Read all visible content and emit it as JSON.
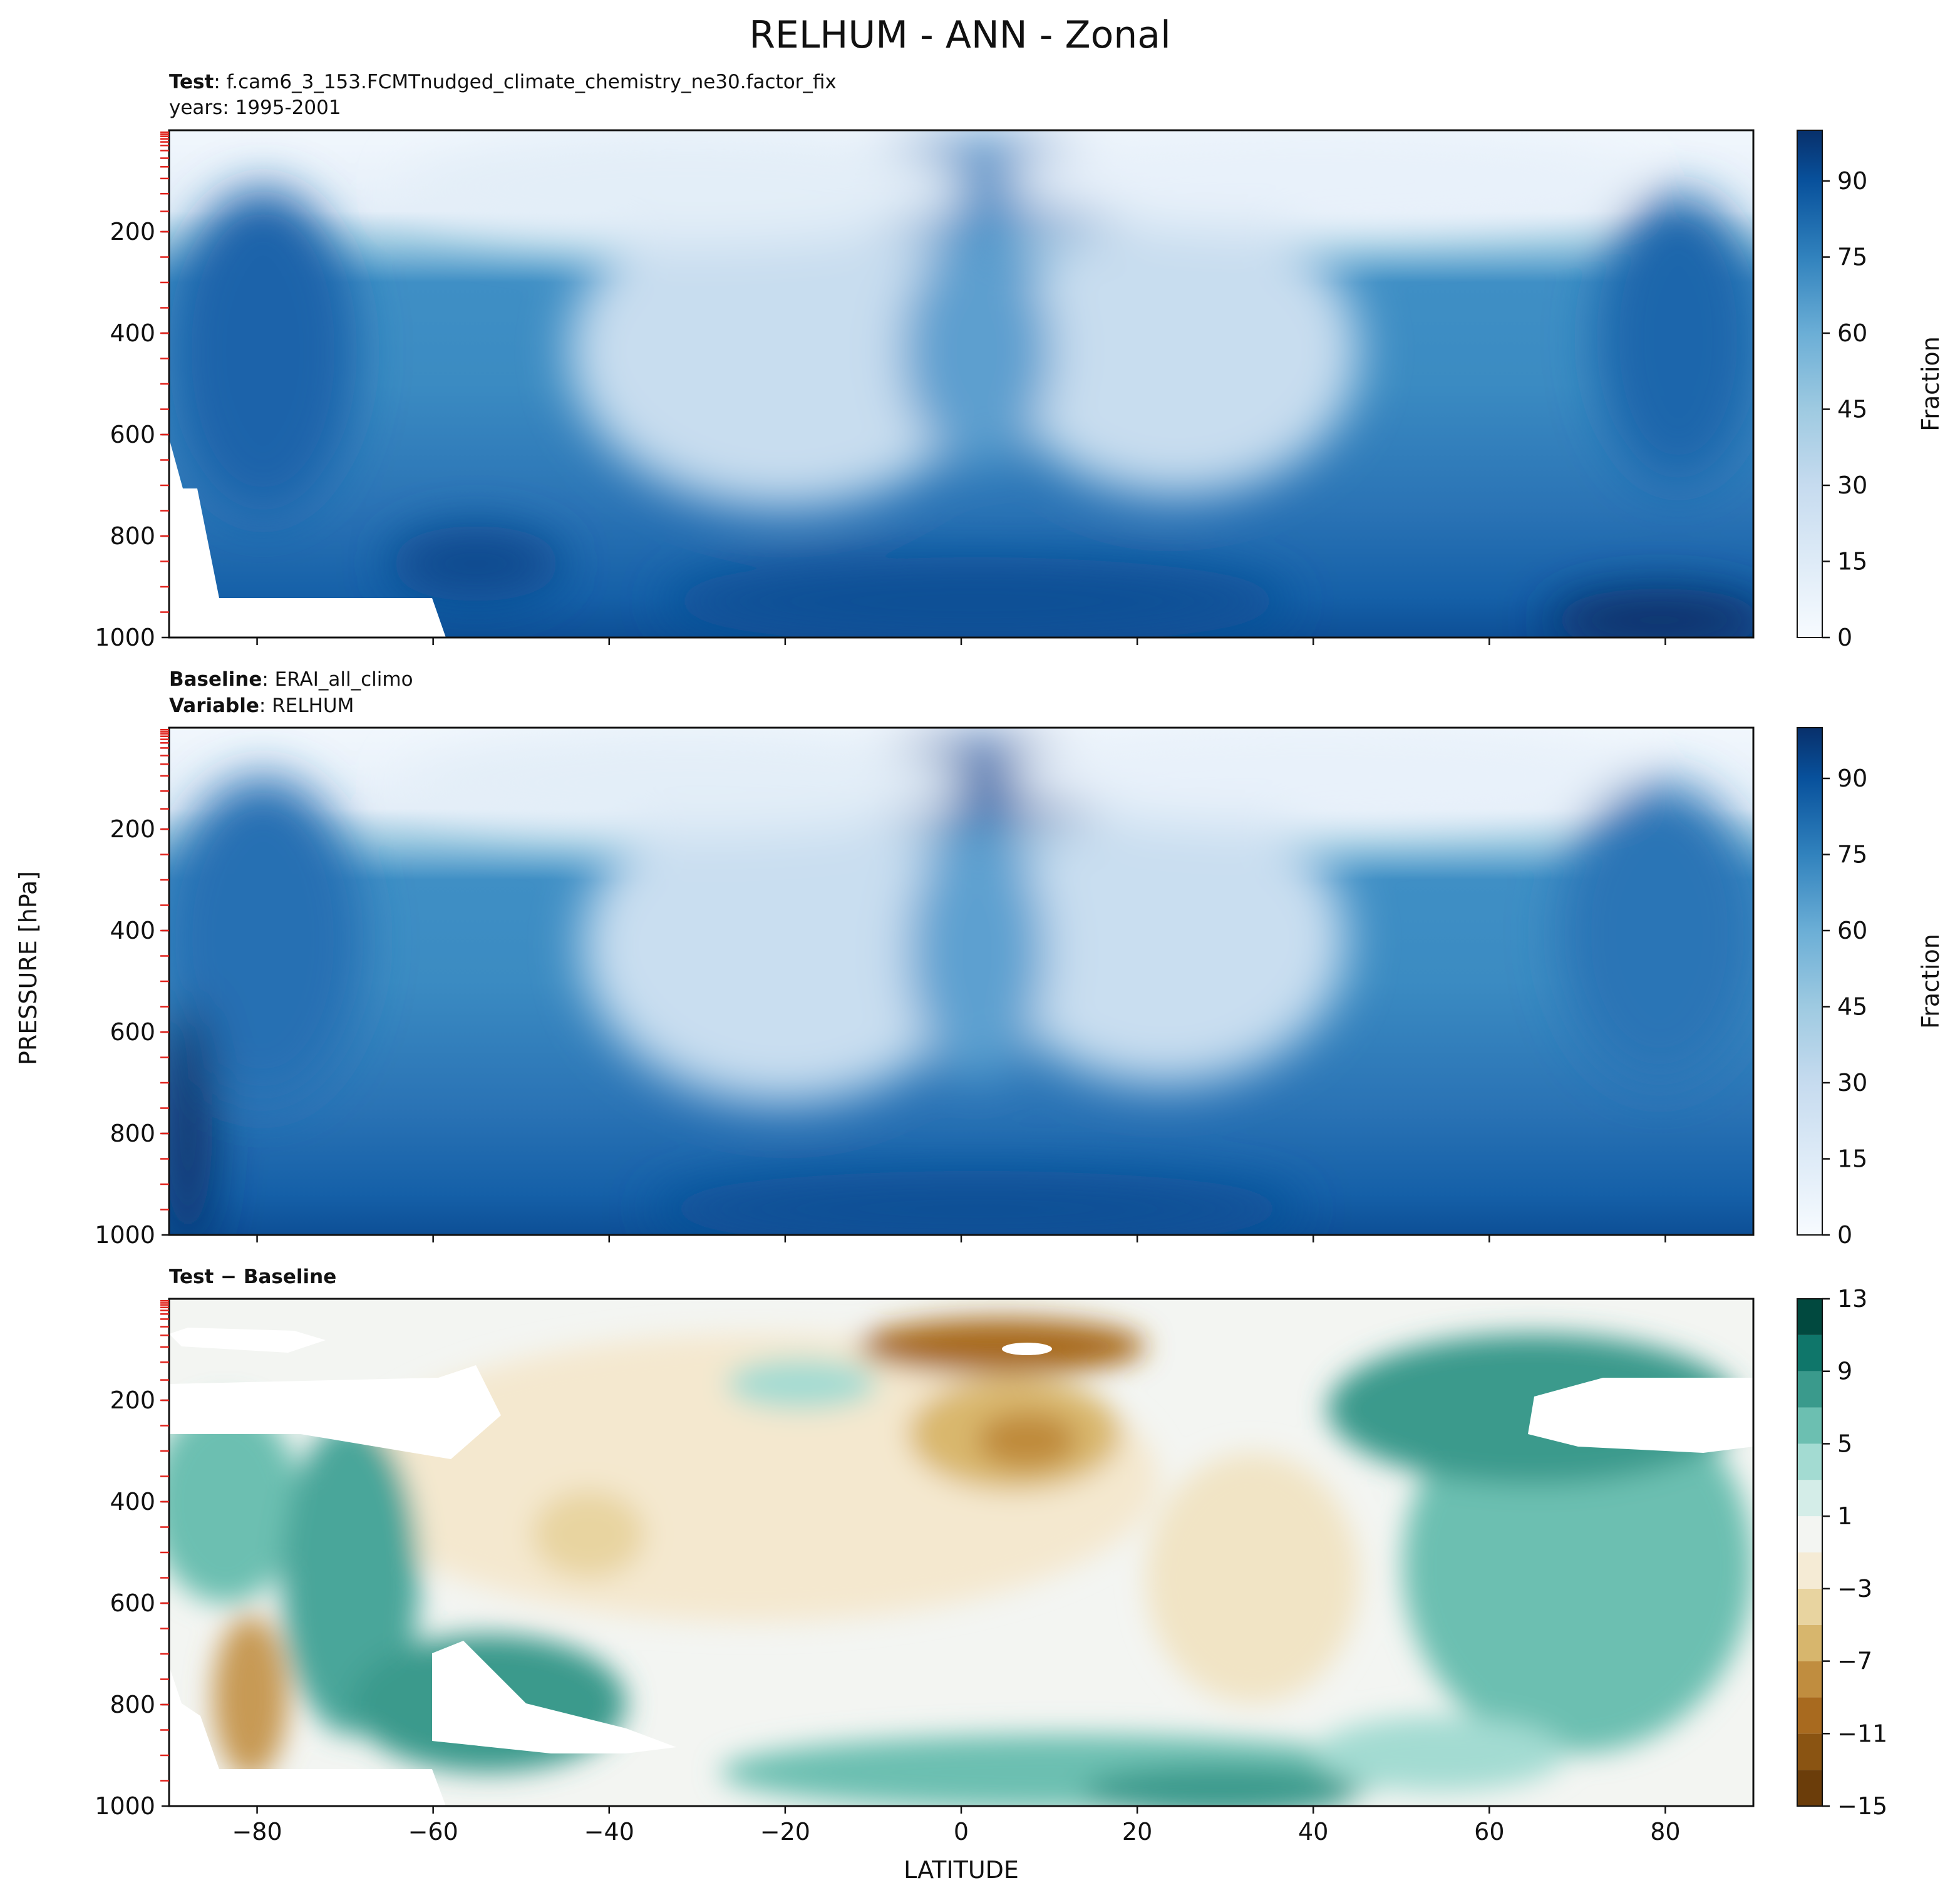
{
  "figure": {
    "title": "RELHUM - ANN - Zonal",
    "ylabel": "PRESSURE [hPa]",
    "xlabel": "LATITUDE"
  },
  "chart_data": [
    {
      "type": "heatmap",
      "panel": "test",
      "header": {
        "line1_bold": "Test",
        "line1_text": ": f.cam6_3_153.FCMTnudged_climate_chemistry_ne30.factor_fix",
        "line2_text": "years: 1995-2001"
      },
      "x_ticks": [
        -80,
        -60,
        -40,
        -20,
        0,
        20,
        40,
        60,
        80
      ],
      "y_ticks": [
        200,
        400,
        600,
        800,
        1000
      ],
      "y_tick_labels": [
        "200",
        "400",
        "600",
        "800",
        "1000"
      ],
      "xlim": [
        -90,
        90
      ],
      "ylim": [
        1000,
        0
      ],
      "colorscale": "Blues",
      "colorbar": {
        "label": "Fraction",
        "ticks": [
          0,
          15,
          30,
          45,
          60,
          75,
          90
        ],
        "range": [
          0,
          100
        ]
      },
      "grid": false
    },
    {
      "type": "heatmap",
      "panel": "baseline",
      "header": {
        "line1_bold": "Baseline",
        "line1_text": ": ERAI_all_climo",
        "line2_bold": "Variable",
        "line2_text": ": RELHUM"
      },
      "x_ticks": [
        -80,
        -60,
        -40,
        -20,
        0,
        20,
        40,
        60,
        80
      ],
      "y_ticks": [
        200,
        400,
        600,
        800,
        1000
      ],
      "y_tick_labels": [
        "200",
        "400",
        "600",
        "800",
        "1000"
      ],
      "xlim": [
        -90,
        90
      ],
      "ylim": [
        1000,
        0
      ],
      "colorscale": "Blues",
      "colorbar": {
        "label": "Fraction",
        "ticks": [
          0,
          15,
          30,
          45,
          60,
          75,
          90
        ],
        "range": [
          0,
          100
        ]
      },
      "grid": false
    },
    {
      "type": "heatmap",
      "panel": "difference",
      "header": {
        "line1_bold": "Test − Baseline"
      },
      "x_ticks": [
        -80,
        -60,
        -40,
        -20,
        0,
        20,
        40,
        60,
        80
      ],
      "x_tick_labels": [
        "−80",
        "−60",
        "−40",
        "−20",
        "0",
        "20",
        "40",
        "60",
        "80"
      ],
      "y_ticks": [
        200,
        400,
        600,
        800,
        1000
      ],
      "y_tick_labels": [
        "200",
        "400",
        "600",
        "800",
        "1000"
      ],
      "xlim": [
        -90,
        90
      ],
      "ylim": [
        1000,
        0
      ],
      "colorscale": "BrBG",
      "colorbar": {
        "levels": [
          -15,
          -13,
          -11,
          -9,
          -7,
          -5,
          -3,
          -1,
          1,
          3,
          5,
          7,
          9,
          11,
          13
        ],
        "tick_values": [
          -15,
          -11,
          -7,
          -3,
          1,
          5,
          9,
          13
        ],
        "tick_labels": [
          "−15",
          "−11",
          "−7",
          "−3",
          "1",
          "5",
          "9",
          "13"
        ],
        "colors": [
          "#6b3d0a",
          "#8a5412",
          "#a86a1f",
          "#c08d3f",
          "#d7b66d",
          "#e8d4a0",
          "#f5ebd5",
          "#f3f5f2",
          "#d4ede8",
          "#a3dbd2",
          "#6cbfb1",
          "#3a9a8c",
          "#0f766a",
          "#01493f"
        ]
      },
      "grid": false
    }
  ]
}
